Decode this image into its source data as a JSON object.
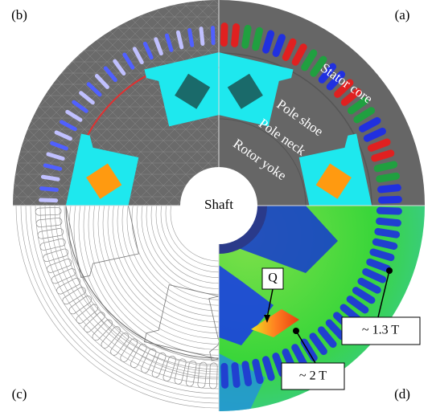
{
  "panels": {
    "a": "(a)",
    "b": "(b)",
    "c": "(c)",
    "d": "(d)"
  },
  "regions": {
    "stator_core": "Stator core",
    "pole_shoe": "Pole shoe",
    "pole_neck": "Pole neck",
    "rotor_yoke": "Rotor yoke",
    "shaft": "Shaft"
  },
  "annotations": {
    "point": "Q",
    "flux_high": "~ 1.3 T",
    "flux_peak": "~ 2 T"
  }
}
